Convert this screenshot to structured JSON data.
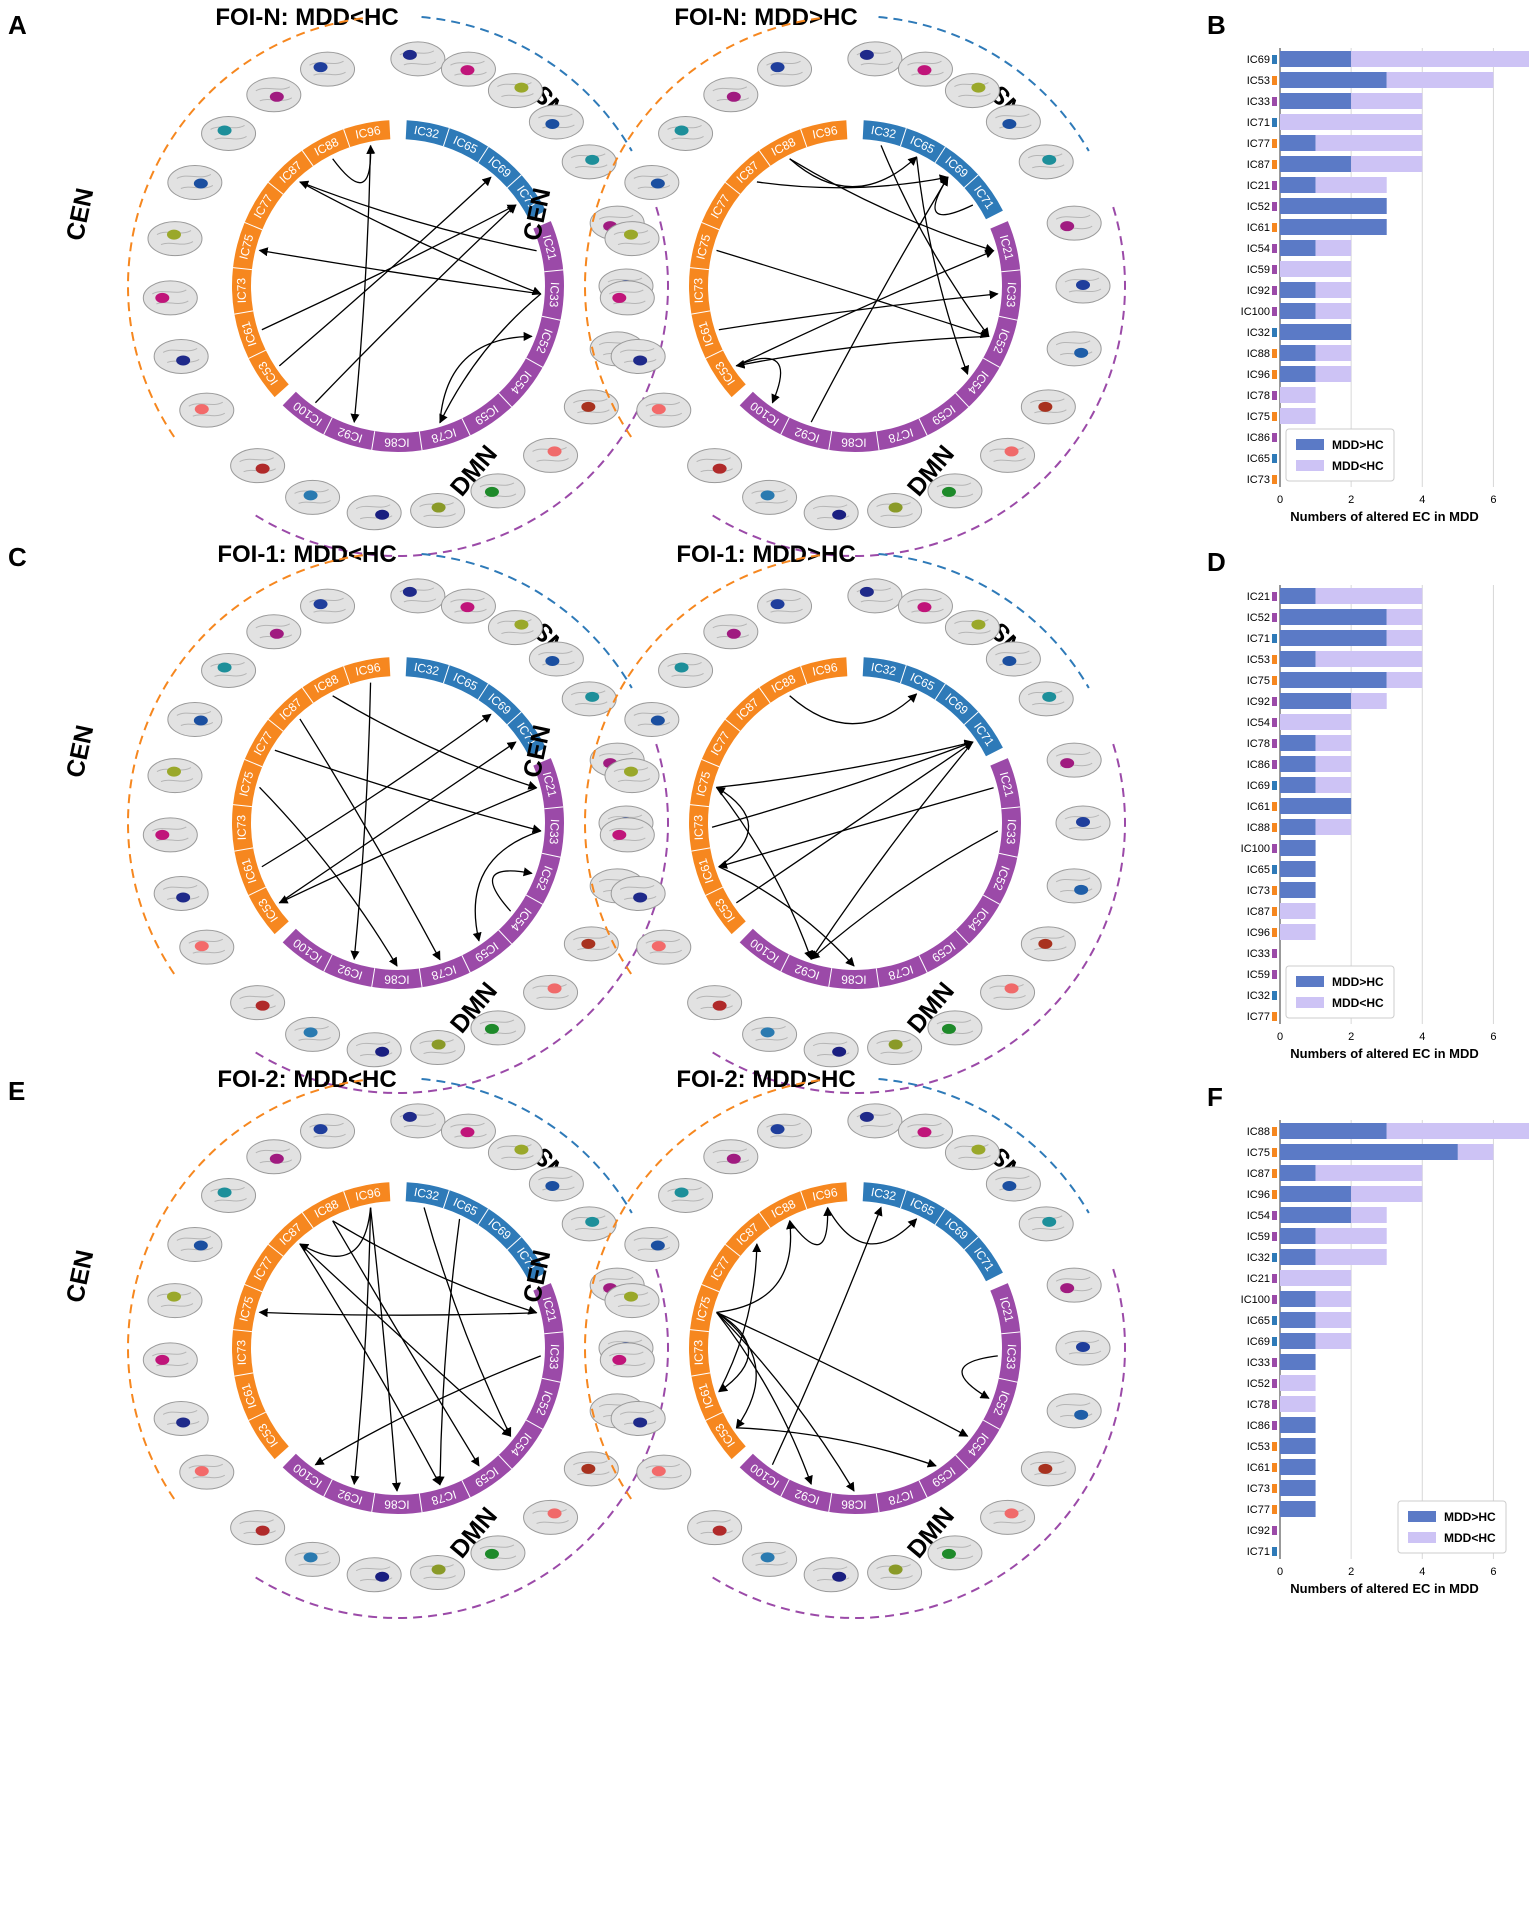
{
  "figure": {
    "panels": [
      {
        "letter": "A",
        "title": "FOI-N: MDD<HC"
      },
      {
        "letter": "",
        "title": "FOI-N: MDD>HC"
      },
      {
        "letter": "C",
        "title": "FOI-1: MDD<HC"
      },
      {
        "letter": "",
        "title": "FOI-1: MDD>HC"
      },
      {
        "letter": "E",
        "title": "FOI-2: MDD<HC"
      },
      {
        "letter": "",
        "title": "FOI-2: MDD>HC"
      }
    ],
    "networks": {
      "CEN": {
        "label": "CEN",
        "color": "#f6871f",
        "nodes": [
          "IC96",
          "IC88",
          "IC87",
          "IC77",
          "IC75",
          "IC73",
          "IC61",
          "IC53"
        ]
      },
      "SN": {
        "label": "SN",
        "color": "#2e7ab8",
        "nodes": [
          "IC32",
          "IC65",
          "IC69",
          "IC71"
        ]
      },
      "DMN": {
        "label": "DMN",
        "color": "#9b4aa8",
        "nodes": [
          "IC21",
          "IC33",
          "IC52",
          "IC54",
          "IC59",
          "IC78",
          "IC86",
          "IC92",
          "IC100"
        ]
      }
    },
    "brain_blob_colors": [
      "#1f2a8a",
      "#c0157a",
      "#9aa82a",
      "#1b4fa0",
      "#1d8f9a",
      "#a01b80",
      "#1f3e9c",
      "#1f5ea8",
      "#a8321f",
      "#f06a6a",
      "#1e8a2a",
      "#8a9a28",
      "#1a1f80",
      "#2a7ab0",
      "#b02a2a",
      "#f36a6a"
    ],
    "connections": {
      "FOI-N: MDD<HC": [
        [
          "IC88",
          "IC96"
        ],
        [
          "IC96",
          "IC92"
        ],
        [
          "IC33",
          "IC75"
        ],
        [
          "IC21",
          "IC87"
        ],
        [
          "IC53",
          "IC69"
        ],
        [
          "IC61",
          "IC71"
        ],
        [
          "IC100",
          "IC71"
        ],
        [
          "IC33",
          "IC78"
        ],
        [
          "IC78",
          "IC52"
        ],
        [
          "IC87",
          "IC33"
        ]
      ],
      "FOI-N: MDD>HC": [
        [
          "IC88",
          "IC65"
        ],
        [
          "IC87",
          "IC69"
        ],
        [
          "IC32",
          "IC52"
        ],
        [
          "IC65",
          "IC54"
        ],
        [
          "IC61",
          "IC33"
        ],
        [
          "IC53",
          "IC21"
        ],
        [
          "IC71",
          "IC69"
        ],
        [
          "IC75",
          "IC52"
        ],
        [
          "IC92",
          "IC69"
        ],
        [
          "IC53",
          "IC100"
        ],
        [
          "IC52",
          "IC53"
        ],
        [
          "IC88",
          "IC21"
        ]
      ],
      "FOI-1: MDD<HC": [
        [
          "IC88",
          "IC21"
        ],
        [
          "IC96",
          "IC92"
        ],
        [
          "IC77",
          "IC33"
        ],
        [
          "IC53",
          "IC71"
        ],
        [
          "IC61",
          "IC69"
        ],
        [
          "IC75",
          "IC86"
        ],
        [
          "IC33",
          "IC59"
        ],
        [
          "IC54",
          "IC52"
        ],
        [
          "IC21",
          "IC53"
        ],
        [
          "IC87",
          "IC78"
        ]
      ],
      "FOI-1: MDD>HC": [
        [
          "IC88",
          "IC65"
        ],
        [
          "IC75",
          "IC71"
        ],
        [
          "IC73",
          "IC71"
        ],
        [
          "IC53",
          "IC71"
        ],
        [
          "IC71",
          "IC92"
        ],
        [
          "IC61",
          "IC75"
        ],
        [
          "IC75",
          "IC92"
        ],
        [
          "IC61",
          "IC86"
        ],
        [
          "IC33",
          "IC92"
        ],
        [
          "IC21",
          "IC61"
        ]
      ],
      "FOI-2: MDD<HC": [
        [
          "IC96",
          "IC86"
        ],
        [
          "IC88",
          "IC21"
        ],
        [
          "IC87",
          "IC54"
        ],
        [
          "IC88",
          "IC59"
        ],
        [
          "IC96",
          "IC92"
        ],
        [
          "IC65",
          "IC78"
        ],
        [
          "IC32",
          "IC54"
        ],
        [
          "IC21",
          "IC75"
        ],
        [
          "IC87",
          "IC78"
        ],
        [
          "IC96",
          "IC87"
        ],
        [
          "IC33",
          "IC100"
        ]
      ],
      "FOI-2: MDD>HC": [
        [
          "IC96",
          "IC65"
        ],
        [
          "IC88",
          "IC96"
        ],
        [
          "IC75",
          "IC53"
        ],
        [
          "IC75",
          "IC61"
        ],
        [
          "IC75",
          "IC54"
        ],
        [
          "IC75",
          "IC86"
        ],
        [
          "IC75",
          "IC92"
        ],
        [
          "IC100",
          "IC32"
        ],
        [
          "IC61",
          "IC87"
        ],
        [
          "IC75",
          "IC88"
        ],
        [
          "IC33",
          "IC52"
        ],
        [
          "IC53",
          "IC59"
        ]
      ]
    }
  },
  "bar_charts": [
    {
      "letter": "B",
      "xlabel": "Numbers of altered EC in MDD",
      "xlim": [
        0,
        7
      ],
      "xticks": [
        "0",
        "2",
        "4",
        "6"
      ],
      "legend": [
        "MDD>HC",
        "MDD<HC"
      ],
      "legend_position": "lower-left",
      "categories": [
        "IC69",
        "IC53",
        "IC33",
        "IC71",
        "IC77",
        "IC87",
        "IC21",
        "IC52",
        "IC61",
        "IC54",
        "IC59",
        "IC92",
        "IC100",
        "IC32",
        "IC88",
        "IC96",
        "IC78",
        "IC75",
        "IC86",
        "IC65",
        "IC73"
      ],
      "network": [
        "SN",
        "CEN",
        "DMN",
        "SN",
        "CEN",
        "CEN",
        "DMN",
        "DMN",
        "CEN",
        "DMN",
        "DMN",
        "DMN",
        "DMN",
        "SN",
        "CEN",
        "CEN",
        "DMN",
        "CEN",
        "DMN",
        "SN",
        "CEN"
      ],
      "mdd_gt_hc": [
        2,
        3,
        2,
        0,
        1,
        2,
        1,
        3,
        3,
        1,
        0,
        1,
        1,
        2,
        1,
        1,
        0,
        0,
        0,
        0,
        0
      ],
      "mdd_lt_hc": [
        5,
        3,
        2,
        4,
        3,
        2,
        2,
        0,
        0,
        1,
        2,
        1,
        1,
        0,
        1,
        1,
        1,
        1,
        0,
        0,
        0
      ]
    },
    {
      "letter": "D",
      "xlabel": "Numbers of altered EC in MDD",
      "xlim": [
        0,
        7
      ],
      "xticks": [
        "0",
        "2",
        "4",
        "6"
      ],
      "legend": [
        "MDD>HC",
        "MDD<HC"
      ],
      "legend_position": "lower-left",
      "categories": [
        "IC21",
        "IC52",
        "IC71",
        "IC53",
        "IC75",
        "IC92",
        "IC54",
        "IC78",
        "IC86",
        "IC69",
        "IC61",
        "IC88",
        "IC100",
        "IC65",
        "IC73",
        "IC87",
        "IC96",
        "IC33",
        "IC59",
        "IC32",
        "IC77"
      ],
      "network": [
        "DMN",
        "DMN",
        "SN",
        "CEN",
        "CEN",
        "DMN",
        "DMN",
        "DMN",
        "DMN",
        "SN",
        "CEN",
        "CEN",
        "DMN",
        "SN",
        "CEN",
        "CEN",
        "CEN",
        "DMN",
        "DMN",
        "SN",
        "CEN"
      ],
      "mdd_gt_hc": [
        1,
        3,
        3,
        1,
        3,
        2,
        0,
        1,
        1,
        1,
        2,
        1,
        1,
        1,
        1,
        0,
        0,
        0,
        0,
        0,
        0
      ],
      "mdd_lt_hc": [
        3,
        1,
        1,
        3,
        1,
        1,
        2,
        1,
        1,
        1,
        0,
        1,
        0,
        0,
        0,
        1,
        1,
        0,
        0,
        0,
        0
      ]
    },
    {
      "letter": "F",
      "xlabel": "Numbers of altered EC in MDD",
      "xlim": [
        0,
        7
      ],
      "xticks": [
        "0",
        "2",
        "4",
        "6"
      ],
      "legend": [
        "MDD>HC",
        "MDD<HC"
      ],
      "legend_position": "lower-right",
      "categories": [
        "IC88",
        "IC75",
        "IC87",
        "IC96",
        "IC54",
        "IC59",
        "IC32",
        "IC21",
        "IC100",
        "IC65",
        "IC69",
        "IC33",
        "IC52",
        "IC78",
        "IC86",
        "IC53",
        "IC61",
        "IC73",
        "IC77",
        "IC92",
        "IC71"
      ],
      "network": [
        "CEN",
        "CEN",
        "CEN",
        "CEN",
        "DMN",
        "DMN",
        "SN",
        "DMN",
        "DMN",
        "SN",
        "SN",
        "DMN",
        "DMN",
        "DMN",
        "DMN",
        "CEN",
        "CEN",
        "CEN",
        "CEN",
        "DMN",
        "SN"
      ],
      "mdd_gt_hc": [
        3,
        5,
        1,
        2,
        2,
        1,
        1,
        0,
        1,
        1,
        1,
        1,
        0,
        0,
        1,
        1,
        1,
        1,
        1,
        0,
        0
      ],
      "mdd_lt_hc": [
        4,
        1,
        3,
        2,
        1,
        2,
        2,
        2,
        1,
        1,
        1,
        0,
        1,
        1,
        0,
        0,
        0,
        0,
        0,
        0,
        0
      ]
    }
  ],
  "bar_colors": {
    "mdd_gt_hc": "#5b7ac6",
    "mdd_lt_hc": "#cdc3f5"
  },
  "chart_data": [
    {
      "type": "bar",
      "title": "B",
      "xlabel": "Numbers of altered EC in MDD",
      "categories": [
        "IC69",
        "IC53",
        "IC33",
        "IC71",
        "IC77",
        "IC87",
        "IC21",
        "IC52",
        "IC61",
        "IC54",
        "IC59",
        "IC92",
        "IC100",
        "IC32",
        "IC88",
        "IC96",
        "IC78",
        "IC75",
        "IC86",
        "IC65",
        "IC73"
      ],
      "series": [
        {
          "name": "MDD>HC",
          "values": [
            2,
            3,
            2,
            0,
            1,
            2,
            1,
            3,
            3,
            1,
            0,
            1,
            1,
            2,
            1,
            1,
            0,
            0,
            0,
            0,
            0
          ]
        },
        {
          "name": "MDD<HC",
          "values": [
            5,
            3,
            2,
            4,
            3,
            2,
            2,
            0,
            0,
            1,
            2,
            1,
            1,
            0,
            1,
            1,
            1,
            1,
            0,
            0,
            0
          ]
        }
      ],
      "xlim": [
        0,
        7
      ]
    },
    {
      "type": "bar",
      "title": "D",
      "xlabel": "Numbers of altered EC in MDD",
      "categories": [
        "IC21",
        "IC52",
        "IC71",
        "IC53",
        "IC75",
        "IC92",
        "IC54",
        "IC78",
        "IC86",
        "IC69",
        "IC61",
        "IC88",
        "IC100",
        "IC65",
        "IC73",
        "IC87",
        "IC96",
        "IC33",
        "IC59",
        "IC32",
        "IC77"
      ],
      "series": [
        {
          "name": "MDD>HC",
          "values": [
            1,
            3,
            3,
            1,
            3,
            2,
            0,
            1,
            1,
            1,
            2,
            1,
            1,
            1,
            1,
            0,
            0,
            0,
            0,
            0,
            0
          ]
        },
        {
          "name": "MDD<HC",
          "values": [
            3,
            1,
            1,
            3,
            1,
            1,
            2,
            1,
            1,
            1,
            0,
            1,
            0,
            0,
            0,
            1,
            1,
            0,
            0,
            0,
            0
          ]
        }
      ],
      "xlim": [
        0,
        7
      ]
    },
    {
      "type": "bar",
      "title": "F",
      "xlabel": "Numbers of altered EC in MDD",
      "categories": [
        "IC88",
        "IC75",
        "IC87",
        "IC96",
        "IC54",
        "IC59",
        "IC32",
        "IC21",
        "IC100",
        "IC65",
        "IC69",
        "IC33",
        "IC52",
        "IC78",
        "IC86",
        "IC53",
        "IC61",
        "IC73",
        "IC77",
        "IC92",
        "IC71"
      ],
      "series": [
        {
          "name": "MDD>HC",
          "values": [
            3,
            5,
            1,
            2,
            2,
            1,
            1,
            0,
            1,
            1,
            1,
            1,
            0,
            0,
            1,
            1,
            1,
            1,
            1,
            0,
            0
          ]
        },
        {
          "name": "MDD<HC",
          "values": [
            4,
            1,
            3,
            2,
            1,
            2,
            2,
            2,
            1,
            1,
            1,
            0,
            1,
            1,
            0,
            0,
            0,
            0,
            0,
            0,
            0
          ]
        }
      ],
      "xlim": [
        0,
        7
      ]
    }
  ]
}
